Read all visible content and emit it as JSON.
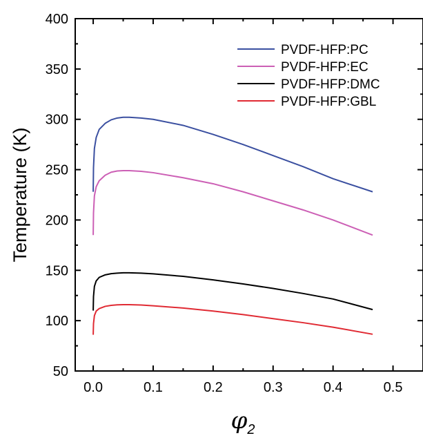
{
  "chart_data": {
    "type": "line",
    "title": "",
    "xlabel": "φ",
    "xlabel_subscript": "2",
    "ylabel": "Temperature (K)",
    "xlim": [
      -0.03,
      0.55
    ],
    "ylim": [
      50,
      400
    ],
    "xticks": [
      0.0,
      0.1,
      0.2,
      0.3,
      0.4,
      0.5
    ],
    "xtick_labels": [
      "0.0",
      "0.1",
      "0.2",
      "0.3",
      "0.4",
      "0.5"
    ],
    "yticks": [
      50,
      100,
      150,
      200,
      250,
      300,
      350,
      400
    ],
    "ytick_labels": [
      "50",
      "100",
      "150",
      "200",
      "250",
      "300",
      "350",
      "400"
    ],
    "grid": false,
    "legend_position": "top-right",
    "series": [
      {
        "name": "PVDF-HFP:PC",
        "color": "#3a4fa0",
        "x": [
          0.0,
          0.0005,
          0.002,
          0.005,
          0.01,
          0.02,
          0.03,
          0.04,
          0.05,
          0.06,
          0.08,
          0.1,
          0.15,
          0.2,
          0.25,
          0.3,
          0.35,
          0.4,
          0.466
        ],
        "y": [
          228,
          252,
          271,
          282,
          290,
          296,
          299.5,
          301.3,
          302,
          302,
          301.3,
          300,
          294,
          285,
          275,
          264,
          253,
          241,
          228
        ]
      },
      {
        "name": "PVDF-HFP:EC",
        "color": "#cc5fb5",
        "x": [
          0.0,
          0.0005,
          0.002,
          0.005,
          0.01,
          0.02,
          0.03,
          0.04,
          0.05,
          0.06,
          0.08,
          0.1,
          0.15,
          0.2,
          0.25,
          0.3,
          0.35,
          0.4,
          0.466
        ],
        "y": [
          185,
          207,
          224,
          233,
          239,
          244.5,
          247.5,
          248.7,
          249,
          249,
          248.3,
          247,
          242,
          236,
          228,
          219,
          210,
          200,
          185
        ]
      },
      {
        "name": "PVDF-HFP:DMC",
        "color": "#000000",
        "x": [
          0.0,
          0.0005,
          0.002,
          0.005,
          0.01,
          0.02,
          0.03,
          0.04,
          0.05,
          0.06,
          0.08,
          0.1,
          0.15,
          0.2,
          0.25,
          0.3,
          0.35,
          0.4,
          0.466
        ],
        "y": [
          110,
          124,
          134,
          139.5,
          143,
          145.5,
          146.7,
          147.2,
          147.5,
          147.5,
          147.2,
          146.5,
          144,
          140.5,
          136.5,
          132,
          127,
          121.5,
          111
        ]
      },
      {
        "name": "PVDF-HFP:GBL",
        "color": "#e02a33",
        "x": [
          0.0,
          0.0005,
          0.002,
          0.005,
          0.01,
          0.02,
          0.03,
          0.04,
          0.05,
          0.06,
          0.08,
          0.1,
          0.15,
          0.2,
          0.25,
          0.3,
          0.35,
          0.4,
          0.466
        ],
        "y": [
          86,
          97,
          105,
          109.5,
          112,
          114.2,
          115.2,
          115.7,
          115.9,
          115.9,
          115.5,
          114.8,
          112.5,
          109.5,
          106,
          102,
          98,
          93.5,
          86.5
        ]
      }
    ]
  }
}
